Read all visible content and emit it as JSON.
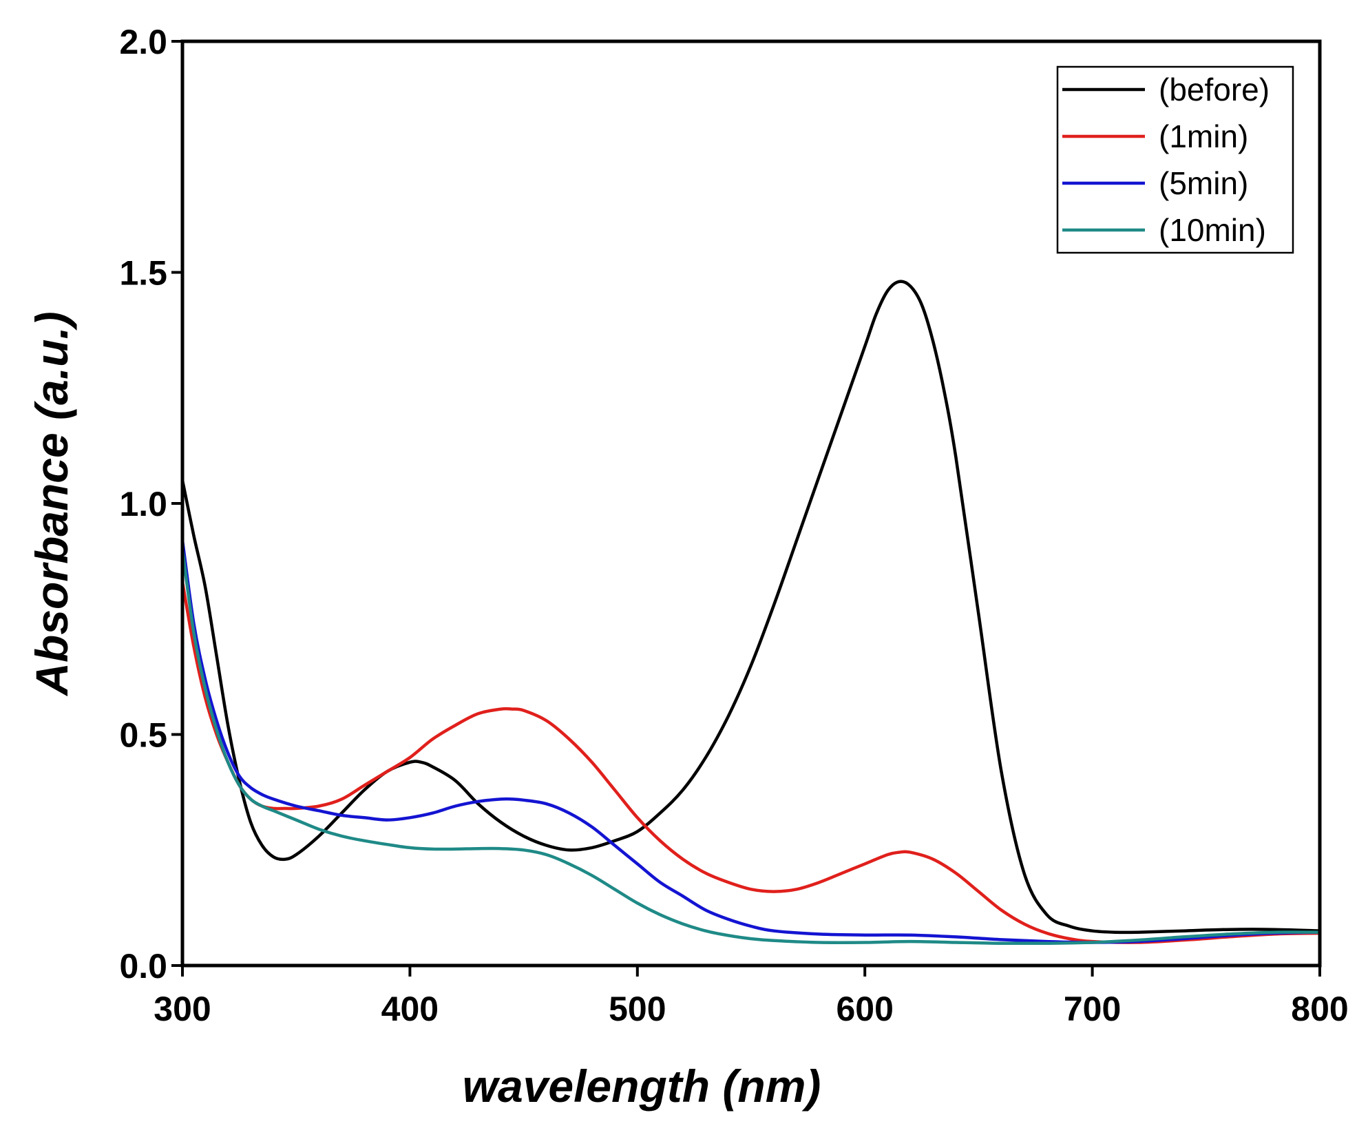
{
  "chart_data": {
    "type": "line",
    "title": "",
    "xlabel": "wavelength (nm)",
    "ylabel": "Absorbance (a.u.)",
    "xlim": [
      300,
      800
    ],
    "ylim": [
      0.0,
      2.0
    ],
    "xticks": [
      "300",
      "400",
      "500",
      "600",
      "700",
      "800"
    ],
    "yticks": [
      "0.0",
      "0.5",
      "1.0",
      "1.5",
      "2.0"
    ],
    "grid": false,
    "legend_position": "top-right",
    "series": [
      {
        "name": "(before)",
        "color": "#000000",
        "x": [
          300,
          305,
          310,
          315,
          320,
          325,
          330,
          335,
          340,
          345,
          350,
          360,
          370,
          380,
          390,
          400,
          405,
          410,
          420,
          430,
          440,
          450,
          460,
          470,
          480,
          490,
          500,
          510,
          520,
          530,
          540,
          550,
          560,
          570,
          580,
          590,
          600,
          605,
          610,
          615,
          620,
          625,
          630,
          635,
          640,
          650,
          660,
          670,
          680,
          690,
          700,
          710,
          720,
          740,
          760,
          780,
          800
        ],
        "y": [
          1.05,
          0.93,
          0.82,
          0.67,
          0.52,
          0.4,
          0.31,
          0.26,
          0.235,
          0.23,
          0.24,
          0.28,
          0.33,
          0.38,
          0.42,
          0.44,
          0.44,
          0.43,
          0.4,
          0.35,
          0.31,
          0.28,
          0.26,
          0.25,
          0.255,
          0.27,
          0.29,
          0.33,
          0.38,
          0.45,
          0.54,
          0.65,
          0.78,
          0.92,
          1.06,
          1.2,
          1.34,
          1.41,
          1.46,
          1.48,
          1.47,
          1.43,
          1.35,
          1.24,
          1.1,
          0.76,
          0.42,
          0.2,
          0.11,
          0.085,
          0.075,
          0.072,
          0.072,
          0.075,
          0.078,
          0.078,
          0.075
        ]
      },
      {
        "name": "(1min)",
        "color": "#e0201c",
        "x": [
          300,
          305,
          310,
          315,
          320,
          325,
          330,
          335,
          340,
          345,
          350,
          360,
          370,
          380,
          390,
          400,
          410,
          420,
          430,
          440,
          445,
          450,
          460,
          470,
          480,
          490,
          500,
          510,
          520,
          530,
          540,
          550,
          560,
          570,
          580,
          590,
          600,
          610,
          615,
          620,
          630,
          640,
          650,
          660,
          670,
          680,
          690,
          700,
          720,
          740,
          760,
          780,
          800
        ],
        "y": [
          0.83,
          0.69,
          0.58,
          0.5,
          0.44,
          0.39,
          0.36,
          0.345,
          0.34,
          0.34,
          0.34,
          0.345,
          0.36,
          0.39,
          0.42,
          0.45,
          0.49,
          0.52,
          0.545,
          0.555,
          0.555,
          0.552,
          0.53,
          0.49,
          0.44,
          0.38,
          0.32,
          0.27,
          0.23,
          0.2,
          0.18,
          0.165,
          0.16,
          0.165,
          0.18,
          0.2,
          0.22,
          0.24,
          0.245,
          0.245,
          0.23,
          0.2,
          0.16,
          0.12,
          0.09,
          0.07,
          0.058,
          0.052,
          0.05,
          0.055,
          0.062,
          0.068,
          0.07
        ]
      },
      {
        "name": "(5min)",
        "color": "#1414d2",
        "x": [
          300,
          305,
          310,
          315,
          320,
          325,
          330,
          335,
          340,
          350,
          360,
          370,
          380,
          390,
          400,
          410,
          420,
          430,
          440,
          445,
          450,
          460,
          470,
          480,
          490,
          500,
          510,
          520,
          530,
          540,
          550,
          560,
          580,
          600,
          620,
          640,
          660,
          680,
          700,
          720,
          740,
          760,
          780,
          800
        ],
        "y": [
          0.92,
          0.74,
          0.62,
          0.53,
          0.46,
          0.41,
          0.385,
          0.37,
          0.36,
          0.345,
          0.335,
          0.325,
          0.32,
          0.315,
          0.32,
          0.33,
          0.345,
          0.355,
          0.36,
          0.36,
          0.358,
          0.35,
          0.33,
          0.3,
          0.26,
          0.22,
          0.18,
          0.15,
          0.12,
          0.1,
          0.085,
          0.075,
          0.068,
          0.066,
          0.066,
          0.062,
          0.056,
          0.052,
          0.05,
          0.052,
          0.058,
          0.065,
          0.07,
          0.072
        ]
      },
      {
        "name": "(10min)",
        "color": "#1f8a87",
        "x": [
          300,
          305,
          310,
          315,
          320,
          325,
          330,
          335,
          340,
          350,
          360,
          370,
          380,
          390,
          400,
          410,
          420,
          430,
          440,
          450,
          460,
          470,
          480,
          490,
          500,
          510,
          520,
          530,
          540,
          550,
          560,
          580,
          600,
          620,
          640,
          660,
          680,
          700,
          720,
          740,
          760,
          780,
          800
        ],
        "y": [
          0.9,
          0.72,
          0.6,
          0.51,
          0.44,
          0.39,
          0.36,
          0.345,
          0.335,
          0.315,
          0.295,
          0.28,
          0.27,
          0.262,
          0.255,
          0.252,
          0.252,
          0.253,
          0.253,
          0.25,
          0.24,
          0.22,
          0.195,
          0.165,
          0.135,
          0.11,
          0.09,
          0.075,
          0.065,
          0.058,
          0.054,
          0.05,
          0.05,
          0.052,
          0.05,
          0.048,
          0.048,
          0.05,
          0.055,
          0.062,
          0.068,
          0.072,
          0.072
        ]
      }
    ]
  }
}
